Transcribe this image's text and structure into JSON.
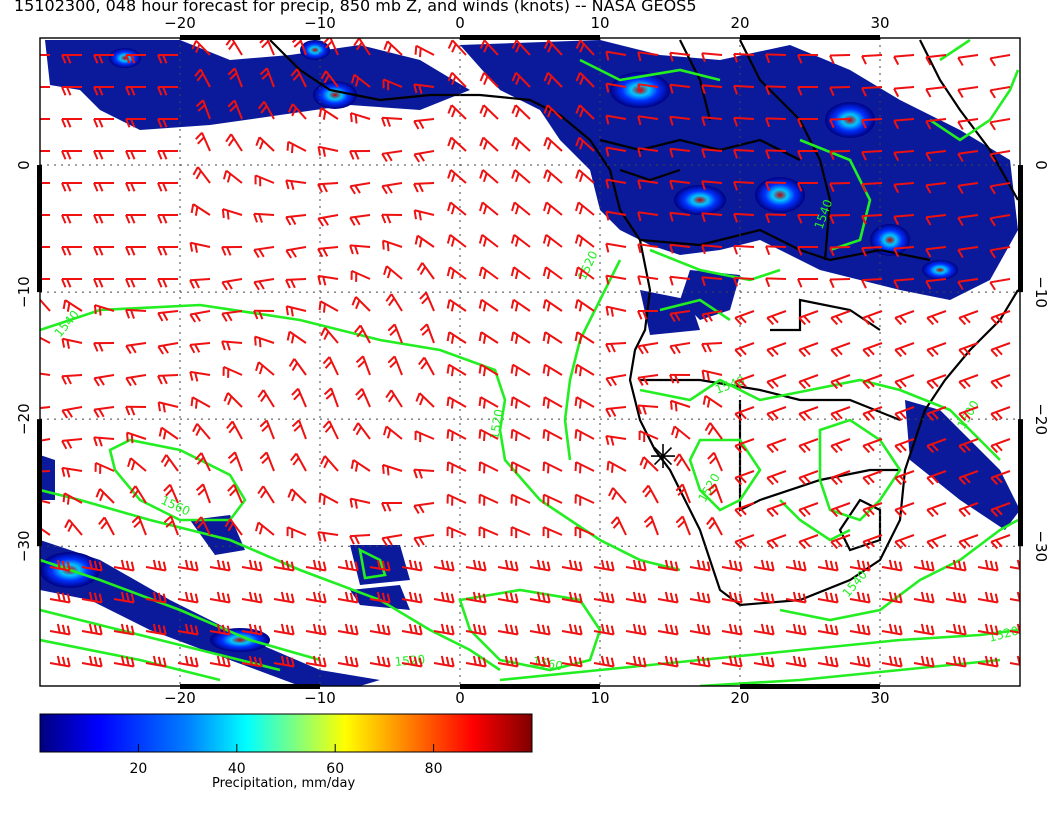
{
  "title": "15102300, 048 hour forecast for precip, 850 mb Z, and winds (knots) -- NASA GEOS5",
  "map": {
    "lon_range": [
      -30,
      40
    ],
    "lat_range": [
      -41,
      10
    ],
    "lon_ticks": [
      -20,
      -10,
      0,
      10,
      20,
      30
    ],
    "lat_ticks": [
      0,
      -10,
      -20,
      -30
    ],
    "lon_tick_labels": [
      "−20",
      "−10",
      "0",
      "10",
      "20",
      "30"
    ],
    "lat_tick_labels": [
      "0",
      "−10",
      "−20",
      "−30"
    ],
    "grid": true,
    "station_marker": {
      "lon": 14.5,
      "lat": -22.9
    }
  },
  "contours": {
    "color": "#22ee22",
    "labels": [
      "1540",
      "1560",
      "1520",
      "1520",
      "1540",
      "1520",
      "1500",
      "1560",
      "1540",
      "1520",
      "1520",
      "1540"
    ]
  },
  "winds": {
    "color": "#ee1111"
  },
  "colorbar": {
    "ticks": [
      20,
      40,
      60,
      80
    ],
    "tick_labels": [
      "20",
      "40",
      "60",
      "80"
    ],
    "range": [
      0,
      100
    ],
    "label": "Precipitation, mm/day",
    "colors": [
      "#00007f",
      "#0000ff",
      "#007fff",
      "#00ffff",
      "#7fff7f",
      "#ffff00",
      "#ff7f00",
      "#ff0000",
      "#7f0000"
    ]
  }
}
